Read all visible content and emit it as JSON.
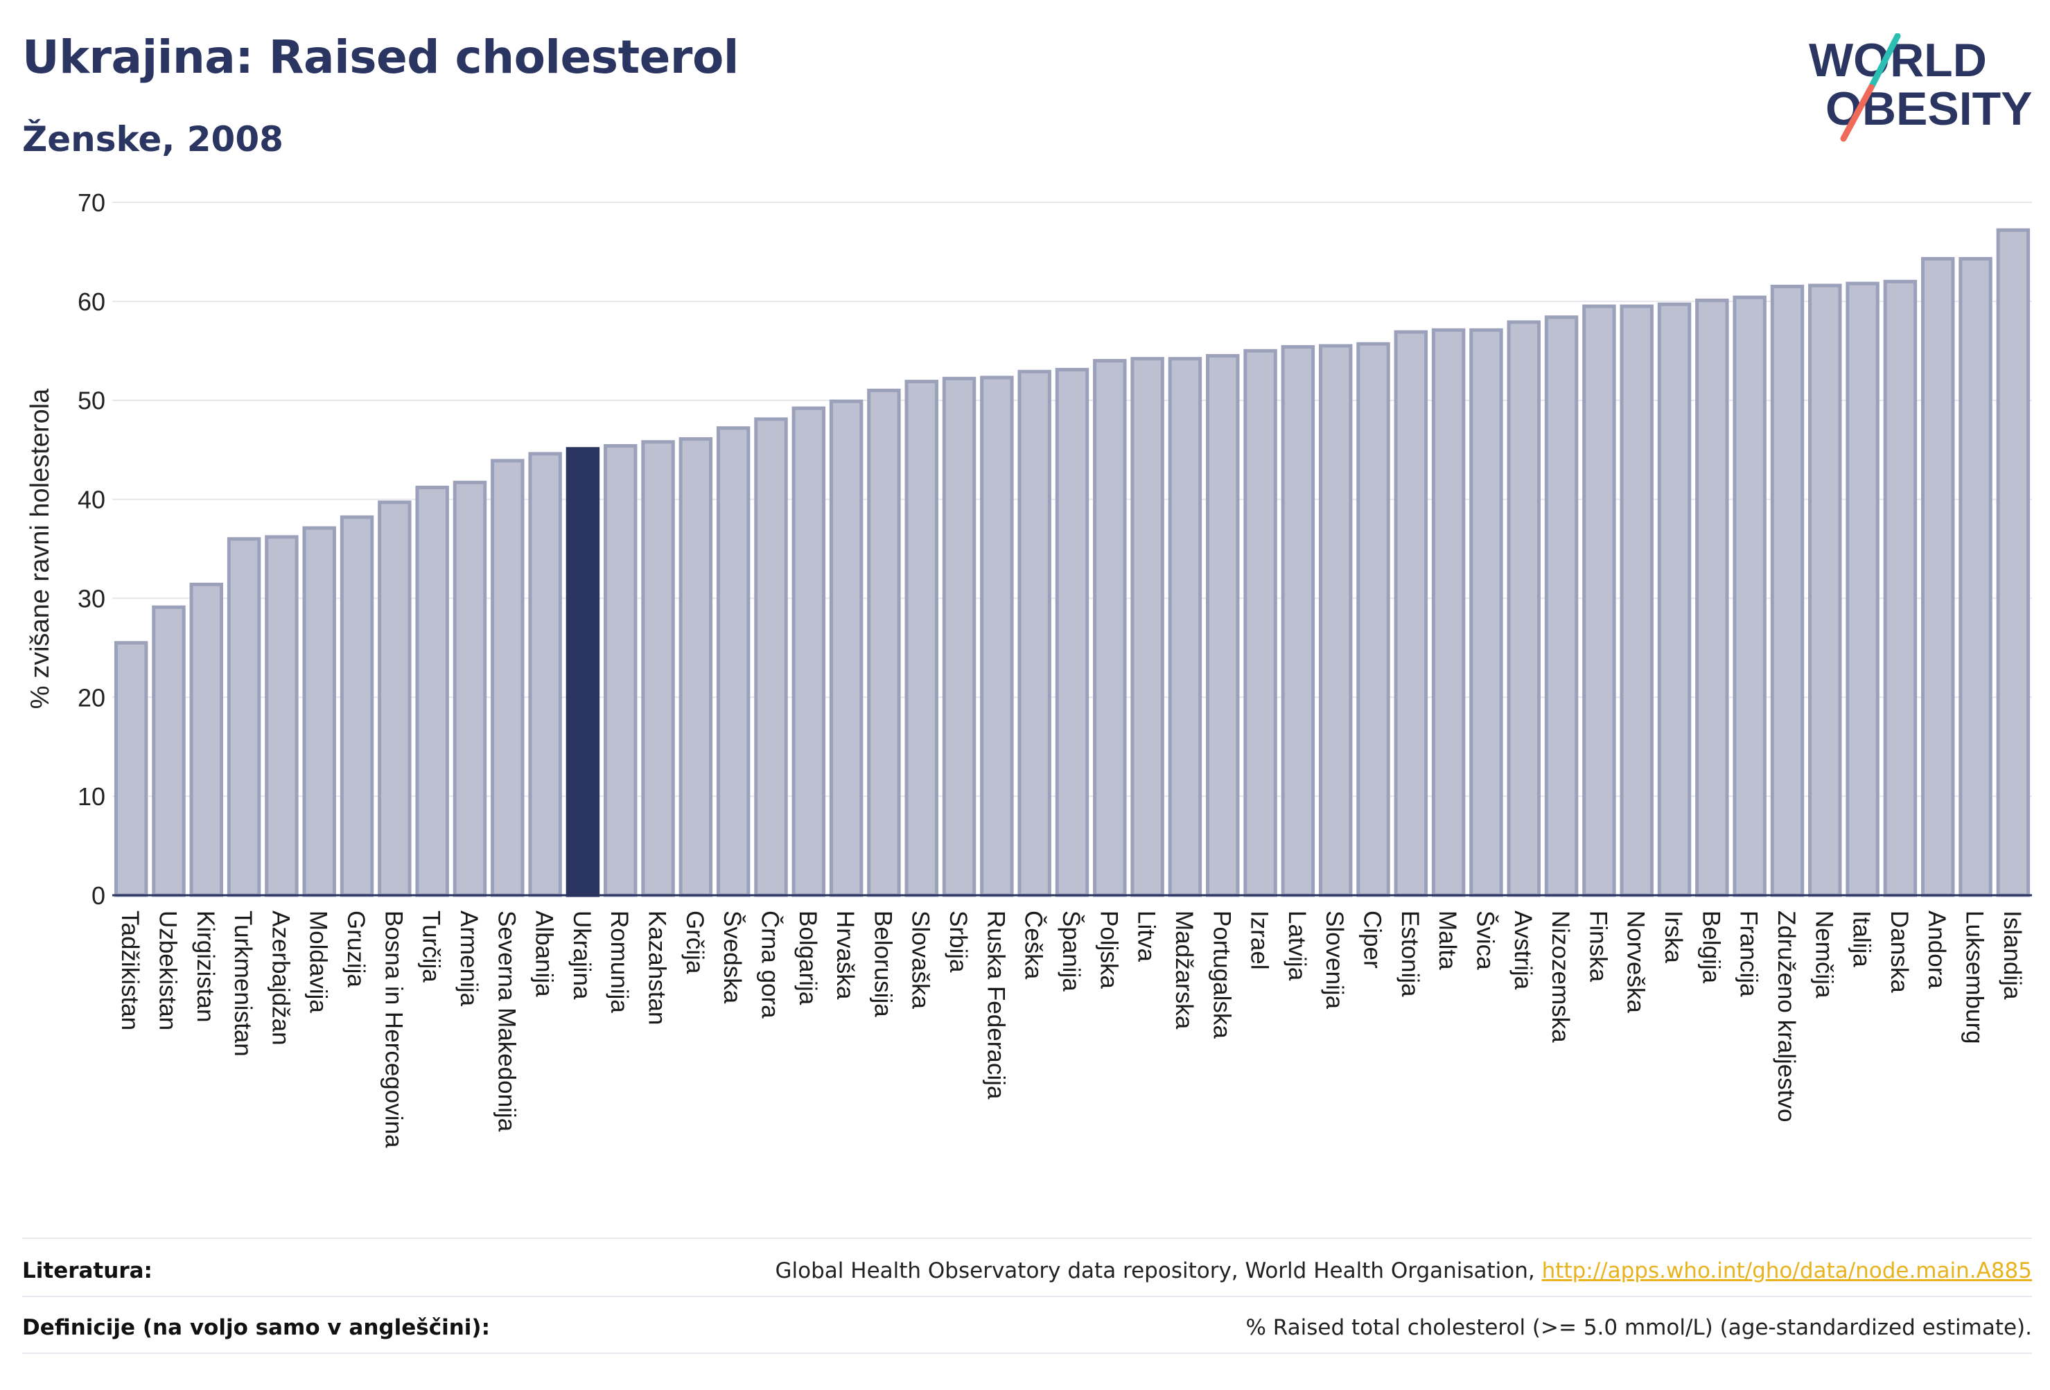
{
  "title": "Ukrajina: Raised cholesterol",
  "subtitle": "Ženske, 2008",
  "logo": {
    "line1": "WORLD",
    "line2": "OBESITY",
    "accent_teal": "#2bbfb3",
    "accent_coral": "#f06a5a",
    "text_color": "#2b3561"
  },
  "colors": {
    "bar": "#bcc0d1",
    "bar_stroke": "#9ba1ba",
    "highlight": "#2b3561",
    "grid": "#e6e6ec",
    "axis": "#2b3561"
  },
  "chart_data": {
    "type": "bar",
    "ylabel": "% zvišane ravni holesterola",
    "ylim": [
      0,
      70
    ],
    "yticks": [
      0,
      10,
      20,
      30,
      40,
      50,
      60,
      70
    ],
    "highlight": "Ukrajina",
    "categories": [
      "Tadžikistan",
      "Uzbekistan",
      "Kirgizistan",
      "Turkmenistan",
      "Azerbajdžan",
      "Moldavija",
      "Gruzija",
      "Bosna in Hercegovina",
      "Turčija",
      "Armenija",
      "Severna Makedonija",
      "Albanija",
      "Ukrajina",
      "Romunija",
      "Kazahstan",
      "Grčija",
      "Švedska",
      "Črna gora",
      "Bolgarija",
      "Hrvaška",
      "Belorusija",
      "Slovaška",
      "Srbija",
      "Ruska Federacija",
      "Češka",
      "Španija",
      "Poljska",
      "Litva",
      "Madžarska",
      "Portugalska",
      "Izrael",
      "Latvija",
      "Slovenija",
      "Ciper",
      "Estonija",
      "Malta",
      "Švica",
      "Avstrija",
      "Nizozemska",
      "Finska",
      "Norveška",
      "Irska",
      "Belgija",
      "Francija",
      "Združeno kraljestvo",
      "Nemčija",
      "Italija",
      "Danska",
      "Andora",
      "Luksemburg",
      "Islandija"
    ],
    "values": [
      25.5,
      29.1,
      31.4,
      36.0,
      36.2,
      37.1,
      38.2,
      39.7,
      41.2,
      41.7,
      43.9,
      44.6,
      45.1,
      45.4,
      45.8,
      46.1,
      47.2,
      48.1,
      49.2,
      49.9,
      51.0,
      51.9,
      52.2,
      52.3,
      52.9,
      53.1,
      54.0,
      54.2,
      54.2,
      54.5,
      55.0,
      55.4,
      55.5,
      55.7,
      56.9,
      57.1,
      57.1,
      57.9,
      58.4,
      59.5,
      59.5,
      59.7,
      60.1,
      60.4,
      61.5,
      61.6,
      61.8,
      62.0,
      64.3,
      64.3,
      67.2
    ]
  },
  "footer": {
    "literature_label": "Literatura:",
    "literature_text": "Global Health Observatory data repository, World Health Organisation,",
    "literature_link": "http://apps.who.int/gho/data/node.main.A885",
    "definitions_label": "Definicije (na voljo samo v angleščini):",
    "definitions_text": "% Raised total cholesterol (>= 5.0 mmol/L) (age-standardized estimate)."
  }
}
